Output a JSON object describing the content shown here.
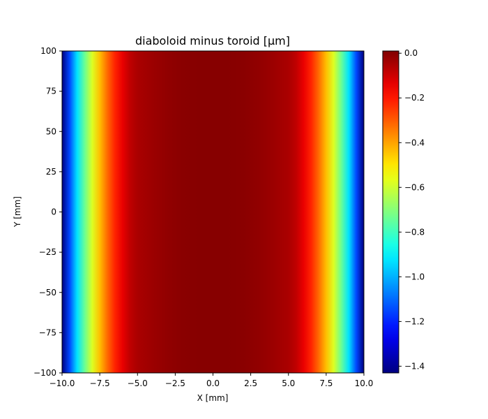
{
  "chart_data": {
    "type": "heatmap",
    "title": "diaboloid minus toroid [μm]",
    "xlabel": "X [mm]",
    "ylabel": "Y [mm]",
    "xlim": [
      -10,
      10
    ],
    "ylim": [
      -100,
      100
    ],
    "xticks": [
      -10,
      -7.5,
      -5,
      -2.5,
      0,
      2.5,
      5,
      7.5,
      10
    ],
    "xtick_labels": [
      "−10.0",
      "−7.5",
      "−5.0",
      "−2.5",
      "0.0",
      "2.5",
      "5.0",
      "7.5",
      "10.0"
    ],
    "yticks": [
      100,
      75,
      50,
      25,
      0,
      -25,
      -50,
      -75,
      -100
    ],
    "ytick_labels": [
      "100",
      "75",
      "50",
      "25",
      "0",
      "−25",
      "−50",
      "−75",
      "−100"
    ],
    "colormap": "jet",
    "colorbar": {
      "vmin": -1.43,
      "vmax": 0.01,
      "ticks": [
        0.0,
        -0.2,
        -0.4,
        -0.6,
        -0.8,
        -1.0,
        -1.2,
        -1.4
      ],
      "tick_labels": [
        "0.0",
        "−0.2",
        "−0.4",
        "−0.6",
        "−0.8",
        "−1.0",
        "−1.2",
        "−1.4"
      ]
    },
    "profile_along_x": {
      "x": [
        -10,
        -9.5,
        -9,
        -8.5,
        -8,
        -7.5,
        -7,
        -6.5,
        -6,
        -5.5,
        -5,
        -4,
        -3,
        -2,
        -1,
        0,
        1,
        2,
        3,
        4,
        5,
        5.5,
        6,
        6.5,
        7,
        7.5,
        8,
        8.5,
        9,
        9.5,
        10
      ],
      "values": [
        -1.43,
        -1.15,
        -0.93,
        -0.74,
        -0.58,
        -0.44,
        -0.32,
        -0.22,
        -0.14,
        -0.08,
        -0.05,
        -0.03,
        -0.015,
        -0.005,
        0.0,
        0.0,
        0.0,
        -0.005,
        -0.015,
        -0.03,
        -0.05,
        -0.08,
        -0.14,
        -0.22,
        -0.32,
        -0.44,
        -0.58,
        -0.74,
        -0.93,
        -1.15,
        -1.43
      ]
    }
  }
}
